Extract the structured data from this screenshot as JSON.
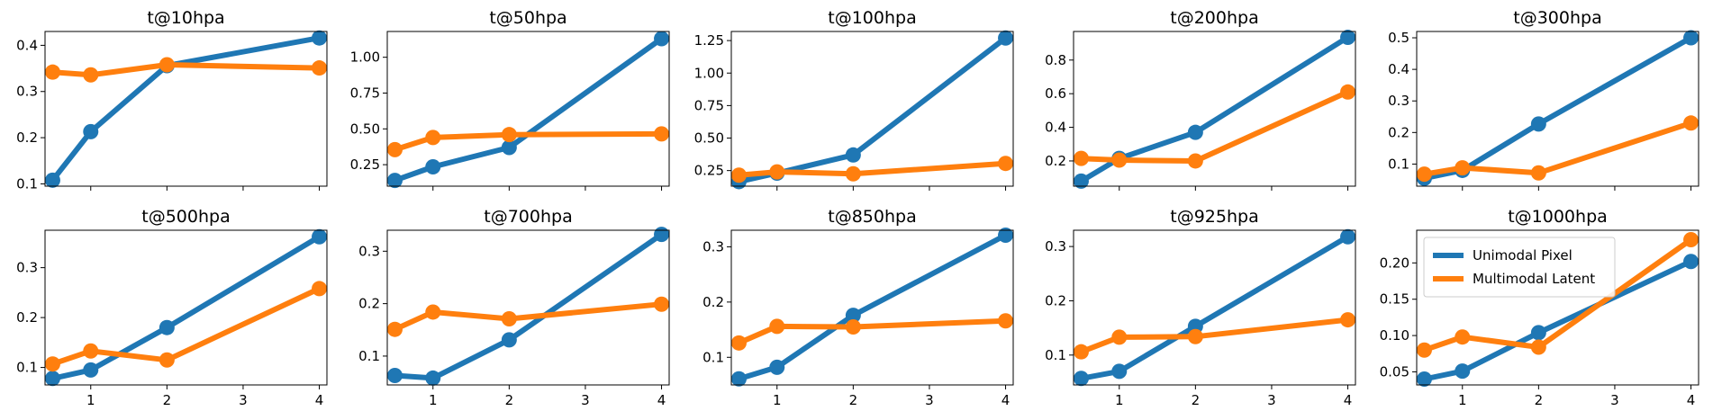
{
  "colors": {
    "unimodal": "#1f77b4",
    "multimodal": "#ff7f0e"
  },
  "chart_data": [
    {
      "type": "line",
      "title": "t@10hpa",
      "x": [
        0.5,
        1,
        2,
        4
      ],
      "ylim": [
        0.095,
        0.43
      ],
      "yticks": [
        0.1,
        0.2,
        0.3,
        0.4
      ],
      "ytick_labels": [
        "0.1",
        "0.2",
        "0.3",
        "0.4"
      ],
      "xtick_labels": [],
      "series": [
        {
          "name": "Unimodal Pixel",
          "values": [
            0.108,
            0.213,
            0.356,
            0.416
          ]
        },
        {
          "name": "Multimodal Latent",
          "values": [
            0.342,
            0.336,
            0.358,
            0.351
          ]
        }
      ]
    },
    {
      "type": "line",
      "title": "t@50hpa",
      "x": [
        0.5,
        1,
        2,
        4
      ],
      "ylim": [
        0.1,
        1.18
      ],
      "yticks": [
        0.25,
        0.5,
        0.75,
        1.0
      ],
      "ytick_labels": [
        "0.25",
        "0.50",
        "0.75",
        "1.00"
      ],
      "xtick_labels": [],
      "series": [
        {
          "name": "Unimodal Pixel",
          "values": [
            0.14,
            0.235,
            0.37,
            1.13
          ]
        },
        {
          "name": "Multimodal Latent",
          "values": [
            0.355,
            0.44,
            0.46,
            0.465
          ]
        }
      ]
    },
    {
      "type": "line",
      "title": "t@100hpa",
      "x": [
        0.5,
        1,
        2,
        4
      ],
      "ylim": [
        0.13,
        1.32
      ],
      "yticks": [
        0.25,
        0.5,
        0.75,
        1.0,
        1.25
      ],
      "ytick_labels": [
        "0.25",
        "0.50",
        "0.75",
        "1.00",
        "1.25"
      ],
      "xtick_labels": [],
      "series": [
        {
          "name": "Unimodal Pixel",
          "values": [
            0.165,
            0.23,
            0.37,
            1.27
          ]
        },
        {
          "name": "Multimodal Latent",
          "values": [
            0.215,
            0.24,
            0.225,
            0.305
          ]
        }
      ]
    },
    {
      "type": "line",
      "title": "t@200hpa",
      "x": [
        0.5,
        1,
        2,
        4
      ],
      "ylim": [
        0.05,
        0.97
      ],
      "yticks": [
        0.2,
        0.4,
        0.6,
        0.8
      ],
      "ytick_labels": [
        "0.2",
        "0.4",
        "0.6",
        "0.8"
      ],
      "xtick_labels": [],
      "series": [
        {
          "name": "Unimodal Pixel",
          "values": [
            0.08,
            0.215,
            0.37,
            0.935
          ]
        },
        {
          "name": "Multimodal Latent",
          "values": [
            0.215,
            0.205,
            0.2,
            0.61
          ]
        }
      ]
    },
    {
      "type": "line",
      "title": "t@300hpa",
      "x": [
        0.5,
        1,
        2,
        4
      ],
      "ylim": [
        0.03,
        0.52
      ],
      "yticks": [
        0.1,
        0.2,
        0.3,
        0.4,
        0.5
      ],
      "ytick_labels": [
        "0.1",
        "0.2",
        "0.3",
        "0.4",
        "0.5"
      ],
      "xtick_labels": [],
      "series": [
        {
          "name": "Unimodal Pixel",
          "values": [
            0.055,
            0.08,
            0.227,
            0.5
          ]
        },
        {
          "name": "Multimodal Latent",
          "values": [
            0.068,
            0.088,
            0.072,
            0.23
          ]
        }
      ]
    },
    {
      "type": "line",
      "title": "t@500hpa",
      "x": [
        0.5,
        1,
        2,
        4
      ],
      "ylim": [
        0.065,
        0.375
      ],
      "yticks": [
        0.1,
        0.2,
        0.3
      ],
      "ytick_labels": [
        "0.1",
        "0.2",
        "0.3"
      ],
      "xtick_labels": [
        "1",
        "2",
        "3",
        "4"
      ],
      "series": [
        {
          "name": "Unimodal Pixel",
          "values": [
            0.078,
            0.095,
            0.18,
            0.362
          ]
        },
        {
          "name": "Multimodal Latent",
          "values": [
            0.107,
            0.133,
            0.115,
            0.258
          ]
        }
      ]
    },
    {
      "type": "line",
      "title": "t@700hpa",
      "x": [
        0.5,
        1,
        2,
        4
      ],
      "ylim": [
        0.045,
        0.34
      ],
      "yticks": [
        0.1,
        0.2,
        0.3
      ],
      "ytick_labels": [
        "0.1",
        "0.2",
        "0.3"
      ],
      "xtick_labels": [
        "1",
        "2",
        "3",
        "4"
      ],
      "series": [
        {
          "name": "Unimodal Pixel",
          "values": [
            0.063,
            0.058,
            0.131,
            0.332
          ]
        },
        {
          "name": "Multimodal Latent",
          "values": [
            0.151,
            0.184,
            0.171,
            0.199
          ]
        }
      ]
    },
    {
      "type": "line",
      "title": "t@850hpa",
      "x": [
        0.5,
        1,
        2,
        4
      ],
      "ylim": [
        0.05,
        0.33
      ],
      "yticks": [
        0.1,
        0.2,
        0.3
      ],
      "ytick_labels": [
        "0.1",
        "0.2",
        "0.3"
      ],
      "xtick_labels": [
        "1",
        "2",
        "3",
        "4"
      ],
      "series": [
        {
          "name": "Unimodal Pixel",
          "values": [
            0.061,
            0.082,
            0.176,
            0.321
          ]
        },
        {
          "name": "Multimodal Latent",
          "values": [
            0.126,
            0.156,
            0.155,
            0.166
          ]
        }
      ]
    },
    {
      "type": "line",
      "title": "t@925hpa",
      "x": [
        0.5,
        1,
        2,
        4
      ],
      "ylim": [
        0.045,
        0.33
      ],
      "yticks": [
        0.1,
        0.2,
        0.3
      ],
      "ytick_labels": [
        "0.1",
        "0.2",
        "0.3"
      ],
      "xtick_labels": [
        "1",
        "2",
        "3",
        "4"
      ],
      "series": [
        {
          "name": "Unimodal Pixel",
          "values": [
            0.057,
            0.07,
            0.153,
            0.318
          ]
        },
        {
          "name": "Multimodal Latent",
          "values": [
            0.106,
            0.133,
            0.134,
            0.165
          ]
        }
      ]
    },
    {
      "type": "line",
      "title": "t@1000hpa",
      "x": [
        0.5,
        1,
        2,
        4
      ],
      "ylim": [
        0.032,
        0.245
      ],
      "yticks": [
        0.05,
        0.1,
        0.15,
        0.2
      ],
      "ytick_labels": [
        "0.05",
        "0.10",
        "0.15",
        "0.20"
      ],
      "xtick_labels": [
        "1",
        "2",
        "3",
        "4"
      ],
      "series": [
        {
          "name": "Unimodal Pixel",
          "values": [
            0.04,
            0.051,
            0.104,
            0.202
          ]
        },
        {
          "name": "Multimodal Latent",
          "values": [
            0.08,
            0.098,
            0.084,
            0.232
          ]
        }
      ],
      "legend": {
        "location": "upper-left",
        "entries": [
          "Unimodal Pixel",
          "Multimodal Latent"
        ]
      }
    }
  ]
}
